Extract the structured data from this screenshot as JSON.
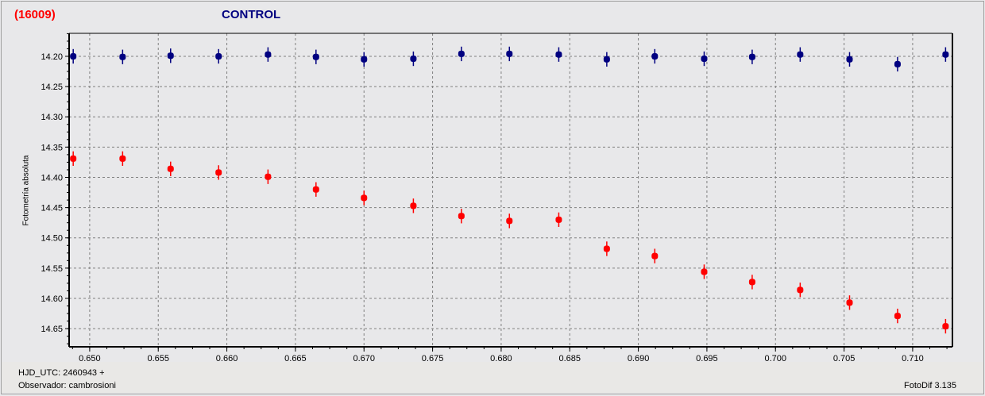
{
  "header": {
    "object_code": "(16009)",
    "title": "CONTROL"
  },
  "footer": {
    "hjd": "HJD_UTC: 2460943 +",
    "observer": "Observador: cambrosioni",
    "version": "FotoDif 3.135"
  },
  "chart_data": {
    "type": "scatter",
    "title": "CONTROL",
    "xlabel": "HJD_UTC: 2460943 +",
    "ylabel": "Fotometría absoluta",
    "xlim": [
      0.6485,
      0.7129
    ],
    "ylim": [
      14.68,
      14.162
    ],
    "y_inverted": true,
    "grid": true,
    "x_ticks": [
      "0.650",
      "0.655",
      "0.660",
      "0.665",
      "0.670",
      "0.675",
      "0.680",
      "0.685",
      "0.690",
      "0.695",
      "0.700",
      "0.705",
      "0.710"
    ],
    "y_ticks": [
      "14.20",
      "14.25",
      "14.30",
      "14.35",
      "14.40",
      "14.45",
      "14.50",
      "14.55",
      "14.60",
      "14.65"
    ],
    "x": [
      0.6488,
      0.6524,
      0.6559,
      0.6594,
      0.663,
      0.6665,
      0.67,
      0.6736,
      0.6771,
      0.6806,
      0.6842,
      0.6877,
      0.6912,
      0.6948,
      0.6983,
      0.7018,
      0.7054,
      0.7089,
      0.7124
    ],
    "error": 0.012,
    "series": [
      {
        "color": "#000080",
        "values": [
          14.2,
          14.201,
          14.199,
          14.2,
          14.197,
          14.201,
          14.205,
          14.204,
          14.196,
          14.196,
          14.197,
          14.205,
          14.2,
          14.204,
          14.201,
          14.197,
          14.205,
          14.213,
          14.197
        ]
      },
      {
        "color": "#ff0000",
        "values": [
          14.369,
          14.369,
          14.386,
          14.392,
          14.399,
          14.42,
          14.434,
          14.447,
          14.464,
          14.472,
          14.47,
          14.518,
          14.53,
          14.556,
          14.573,
          14.586,
          14.607,
          14.629,
          14.646
        ]
      }
    ]
  }
}
